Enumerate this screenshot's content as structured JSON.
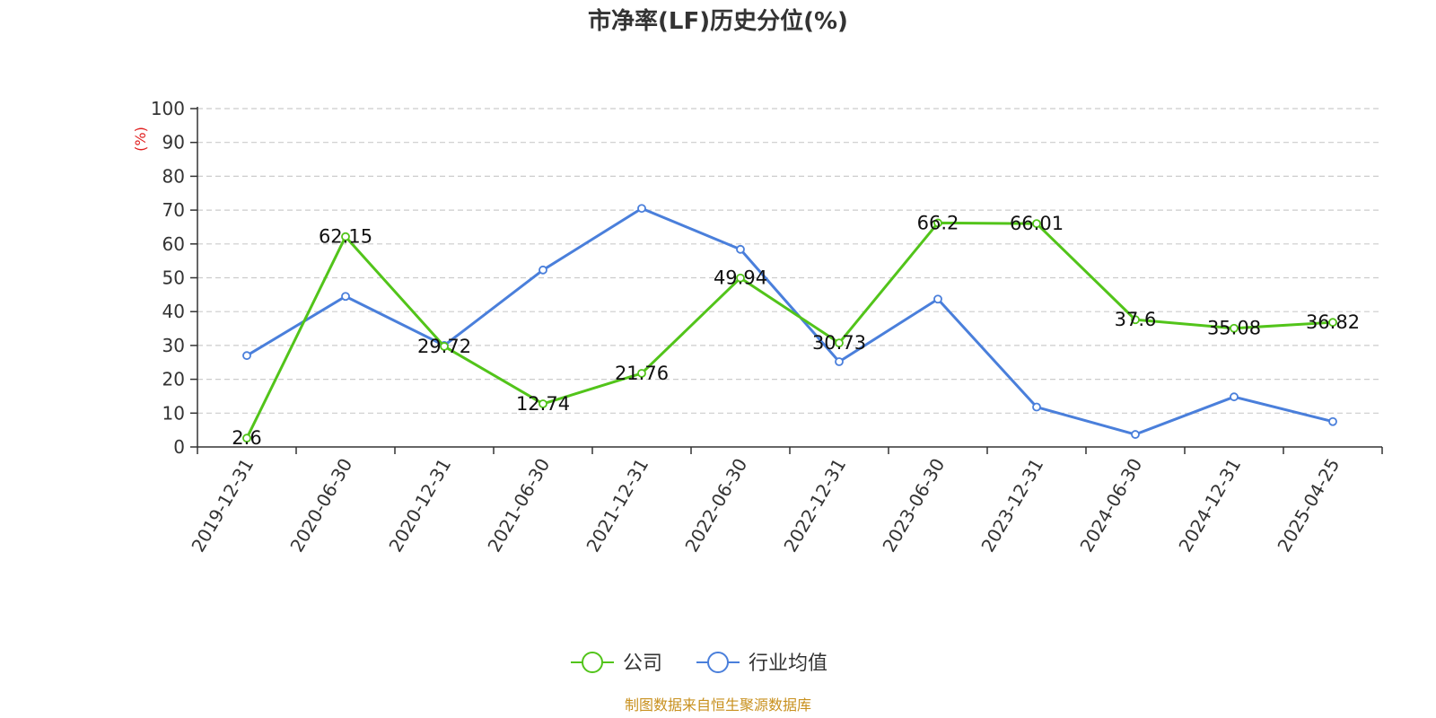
{
  "chart_data": {
    "type": "line",
    "title": "市净率(LF)历史分位(%)",
    "ylabel": "(%)",
    "xlabel": "",
    "ylim": [
      0,
      100
    ],
    "y_ticks": [
      0,
      10,
      20,
      30,
      40,
      50,
      60,
      70,
      80,
      90,
      100
    ],
    "grid": true,
    "legend_position": "bottom-center",
    "categories": [
      "2019-12-31",
      "2020-06-30",
      "2020-12-31",
      "2021-06-30",
      "2021-12-31",
      "2022-06-30",
      "2022-12-31",
      "2023-06-30",
      "2023-12-31",
      "2024-06-30",
      "2024-12-31",
      "2025-04-25"
    ],
    "series": [
      {
        "name": "公司",
        "color": "#52c41a",
        "show_labels": true,
        "values": [
          2.6,
          62.15,
          29.72,
          12.74,
          21.76,
          49.94,
          30.73,
          66.2,
          66.01,
          37.6,
          35.08,
          36.82
        ]
      },
      {
        "name": "行业均值",
        "color": "#4a7fdb",
        "show_labels": false,
        "values": [
          27.0,
          44.5,
          30.0,
          52.3,
          70.5,
          58.4,
          25.2,
          43.7,
          11.8,
          3.7,
          14.8,
          7.5
        ]
      }
    ]
  },
  "source": "制图数据来自恒生聚源数据库"
}
